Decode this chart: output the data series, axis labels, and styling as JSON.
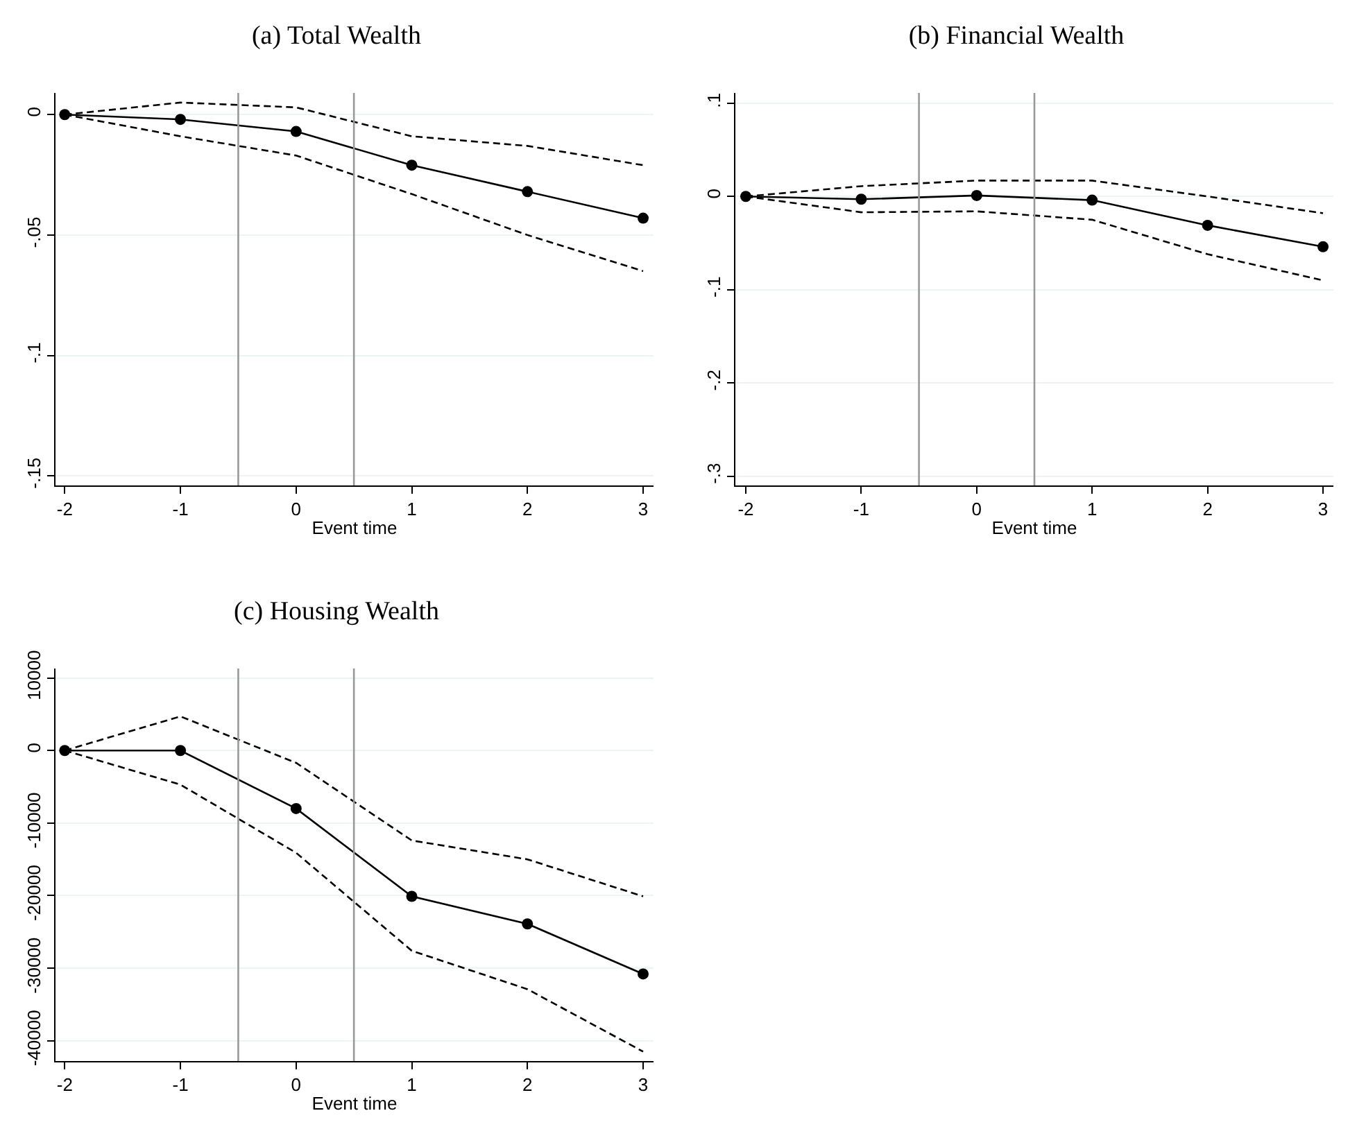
{
  "chart_data": [
    {
      "type": "line",
      "title": "(a) Total Wealth",
      "xlabel": "Event time",
      "x": [
        -2,
        -1,
        0,
        1,
        2,
        3
      ],
      "series": [
        {
          "color": "#000000",
          "marker": "circle",
          "line_style": "solid",
          "values": [
            0,
            -0.002,
            -0.007,
            -0.021,
            -0.032,
            -0.043
          ]
        },
        {
          "color": "#000000",
          "marker": "none",
          "line_style": "dashed",
          "values": [
            0,
            0.005,
            0.003,
            -0.009,
            -0.013,
            -0.021
          ]
        },
        {
          "color": "#000000",
          "marker": "none",
          "line_style": "dashed",
          "values": [
            0,
            -0.009,
            -0.017,
            -0.033,
            -0.05,
            -0.065
          ]
        }
      ],
      "xlim": [
        -2.08,
        3.09
      ],
      "xticks": [
        -2,
        -1,
        0,
        1,
        2,
        3
      ],
      "ylim": [
        -0.154,
        0.009
      ],
      "yticks": [
        {
          "value": -0.15,
          "label": "-.15"
        },
        {
          "value": -0.1,
          "label": "-.1"
        },
        {
          "value": -0.05,
          "label": "-.05"
        },
        0
      ],
      "ref_lines": [
        {
          "axis": "x",
          "value": -0.5,
          "color": "#999999"
        },
        {
          "axis": "x",
          "value": 0.5,
          "color": "#999999"
        }
      ],
      "grid": "y"
    },
    {
      "type": "line",
      "title": "(b) Financial Wealth",
      "xlabel": "Event time",
      "x": [
        -2,
        -1,
        0,
        1,
        2,
        3
      ],
      "series": [
        {
          "color": "#000000",
          "marker": "circle",
          "line_style": "solid",
          "values": [
            0,
            -0.003,
            0.001,
            -0.004,
            -0.031,
            -0.054
          ]
        },
        {
          "color": "#000000",
          "marker": "none",
          "line_style": "dashed",
          "values": [
            0,
            0.011,
            0.017,
            0.017,
            0,
            -0.018
          ]
        },
        {
          "color": "#000000",
          "marker": "none",
          "line_style": "dashed",
          "values": [
            0,
            -0.017,
            -0.016,
            -0.025,
            -0.062,
            -0.09
          ]
        }
      ],
      "xlim": [
        -2.09,
        3.09
      ],
      "xticks": [
        -2,
        -1,
        0,
        1,
        2,
        3
      ],
      "ylim": [
        -0.31,
        0.111
      ],
      "yticks": [
        {
          "value": -0.3,
          "label": "-.3"
        },
        {
          "value": -0.2,
          "label": "-.2"
        },
        {
          "value": -0.1,
          "label": "-.1"
        },
        0,
        {
          "value": 0.1,
          "label": ".1"
        }
      ],
      "ref_lines": [
        {
          "axis": "x",
          "value": -0.5,
          "color": "#999999"
        },
        {
          "axis": "x",
          "value": 0.5,
          "color": "#999999"
        }
      ],
      "grid": "y"
    },
    {
      "type": "line",
      "title": "(c) Housing Wealth",
      "xlabel": "Event time",
      "x": [
        -2,
        -1,
        0,
        1,
        2,
        3
      ],
      "series": [
        {
          "color": "#000000",
          "marker": "circle",
          "line_style": "solid",
          "values": [
            0,
            0,
            -8000,
            -20100,
            -23900,
            -30800
          ]
        },
        {
          "color": "#000000",
          "marker": "none",
          "line_style": "dashed",
          "values": [
            0,
            4700,
            -1700,
            -12400,
            -15000,
            -20100
          ]
        },
        {
          "color": "#000000",
          "marker": "none",
          "line_style": "dashed",
          "values": [
            0,
            -4700,
            -14100,
            -27600,
            -32900,
            -41500
          ]
        }
      ],
      "xlim": [
        -2.08,
        3.09
      ],
      "xticks": [
        -2,
        -1,
        0,
        1,
        2,
        3
      ],
      "ylim": [
        -42800,
        11300
      ],
      "yticks": [
        -40000,
        -30000,
        -20000,
        -10000,
        0,
        10000
      ],
      "ref_lines": [
        {
          "axis": "x",
          "value": -0.5,
          "color": "#999999"
        },
        {
          "axis": "x",
          "value": 0.5,
          "color": "#999999"
        }
      ],
      "grid": "y"
    }
  ]
}
